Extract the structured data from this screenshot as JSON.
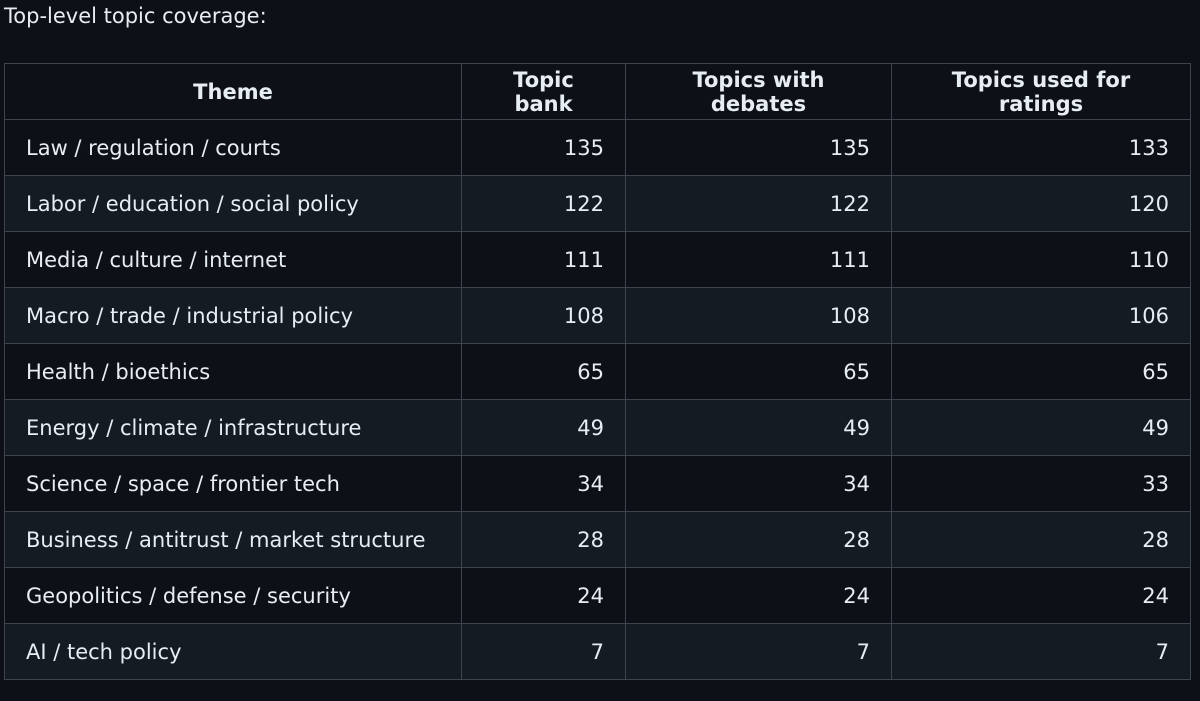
{
  "heading": "Top-level topic coverage:",
  "table": {
    "columns": [
      "Theme",
      "Topic bank",
      "Topics with debates",
      "Topics used for ratings"
    ],
    "rows": [
      [
        "Law / regulation / courts",
        135,
        135,
        133
      ],
      [
        "Labor / education / social policy",
        122,
        122,
        120
      ],
      [
        "Media / culture / internet",
        111,
        111,
        110
      ],
      [
        "Macro / trade / industrial policy",
        108,
        108,
        106
      ],
      [
        "Health / bioethics",
        65,
        65,
        65
      ],
      [
        "Energy / climate / infrastructure",
        49,
        49,
        49
      ],
      [
        "Science / space / frontier tech",
        34,
        34,
        33
      ],
      [
        "Business / antitrust / market structure",
        28,
        28,
        28
      ],
      [
        "Geopolitics / defense / security",
        24,
        24,
        24
      ],
      [
        "AI / tech policy",
        7,
        7,
        7
      ]
    ]
  }
}
